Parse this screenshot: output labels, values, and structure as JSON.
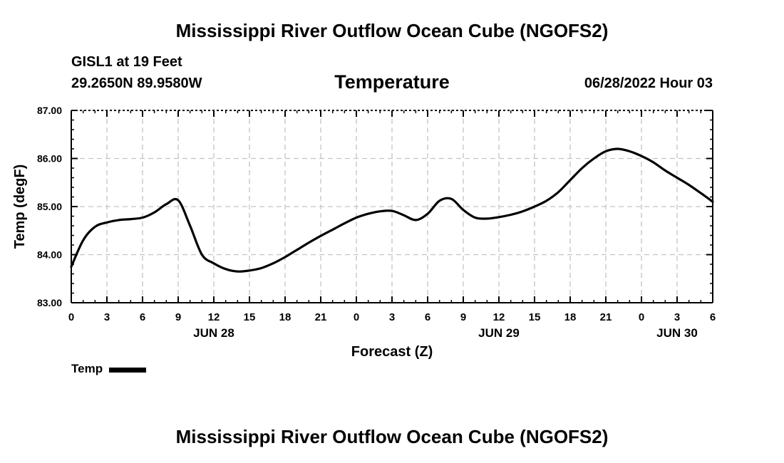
{
  "header": {
    "title": "Mississippi River Outflow Ocean Cube (NGOFS2)",
    "station": "GISL1 at 19 Feet",
    "coords": "29.2650N  89.9580W",
    "chart_title": "Temperature",
    "datetime": "06/28/2022 Hour 03"
  },
  "footer": {
    "title": "Mississippi River Outflow Ocean Cube (NGOFS2)"
  },
  "legend": {
    "label": "Temp",
    "color": "#000000"
  },
  "chart_data": {
    "type": "line",
    "title": "Temperature",
    "xlabel": "Forecast (Z)",
    "ylabel": "Temp (degF)",
    "xlim": [
      0,
      54
    ],
    "ylim": [
      83,
      87
    ],
    "grid": true,
    "x_ticks": [
      0,
      3,
      6,
      9,
      12,
      15,
      18,
      21,
      24,
      27,
      30,
      33,
      36,
      39,
      42,
      45,
      48,
      51,
      54
    ],
    "x_tick_labels": [
      "0",
      "3",
      "6",
      "9",
      "12",
      "15",
      "18",
      "21",
      "0",
      "3",
      "6",
      "9",
      "12",
      "15",
      "18",
      "21",
      "0",
      "3",
      "6"
    ],
    "date_labels": [
      {
        "x": 12,
        "label": "JUN 28"
      },
      {
        "x": 36,
        "label": "JUN 29"
      },
      {
        "x": 51,
        "label": "JUN 30"
      }
    ],
    "y_ticks": [
      83,
      84,
      85,
      86,
      87
    ],
    "y_tick_labels": [
      "83.00",
      "84.00",
      "85.00",
      "86.00",
      "87.00"
    ],
    "series": [
      {
        "name": "Temp",
        "color": "#000000",
        "x": [
          0,
          1,
          2,
          3,
          4,
          5,
          6,
          7,
          8,
          9,
          10,
          11,
          12,
          13,
          14,
          15,
          16,
          17,
          18,
          19,
          20,
          21,
          22,
          23,
          24,
          25,
          26,
          27,
          28,
          29,
          30,
          31,
          32,
          33,
          34,
          35,
          36,
          37,
          38,
          39,
          40,
          41,
          42,
          43,
          44,
          45,
          46,
          47,
          48,
          49,
          50,
          51,
          52,
          53,
          54
        ],
        "y": [
          83.75,
          84.3,
          84.58,
          84.67,
          84.72,
          84.74,
          84.77,
          84.88,
          85.05,
          85.13,
          84.6,
          84.0,
          83.82,
          83.7,
          83.65,
          83.67,
          83.72,
          83.82,
          83.95,
          84.1,
          84.25,
          84.39,
          84.52,
          84.65,
          84.77,
          84.85,
          84.9,
          84.91,
          84.82,
          84.72,
          84.85,
          85.12,
          85.16,
          84.93,
          84.77,
          84.75,
          84.78,
          84.83,
          84.9,
          85.0,
          85.12,
          85.3,
          85.55,
          85.8,
          86.0,
          86.15,
          86.2,
          86.15,
          86.05,
          85.92,
          85.75,
          85.6,
          85.45,
          85.28,
          85.1
        ]
      }
    ]
  }
}
